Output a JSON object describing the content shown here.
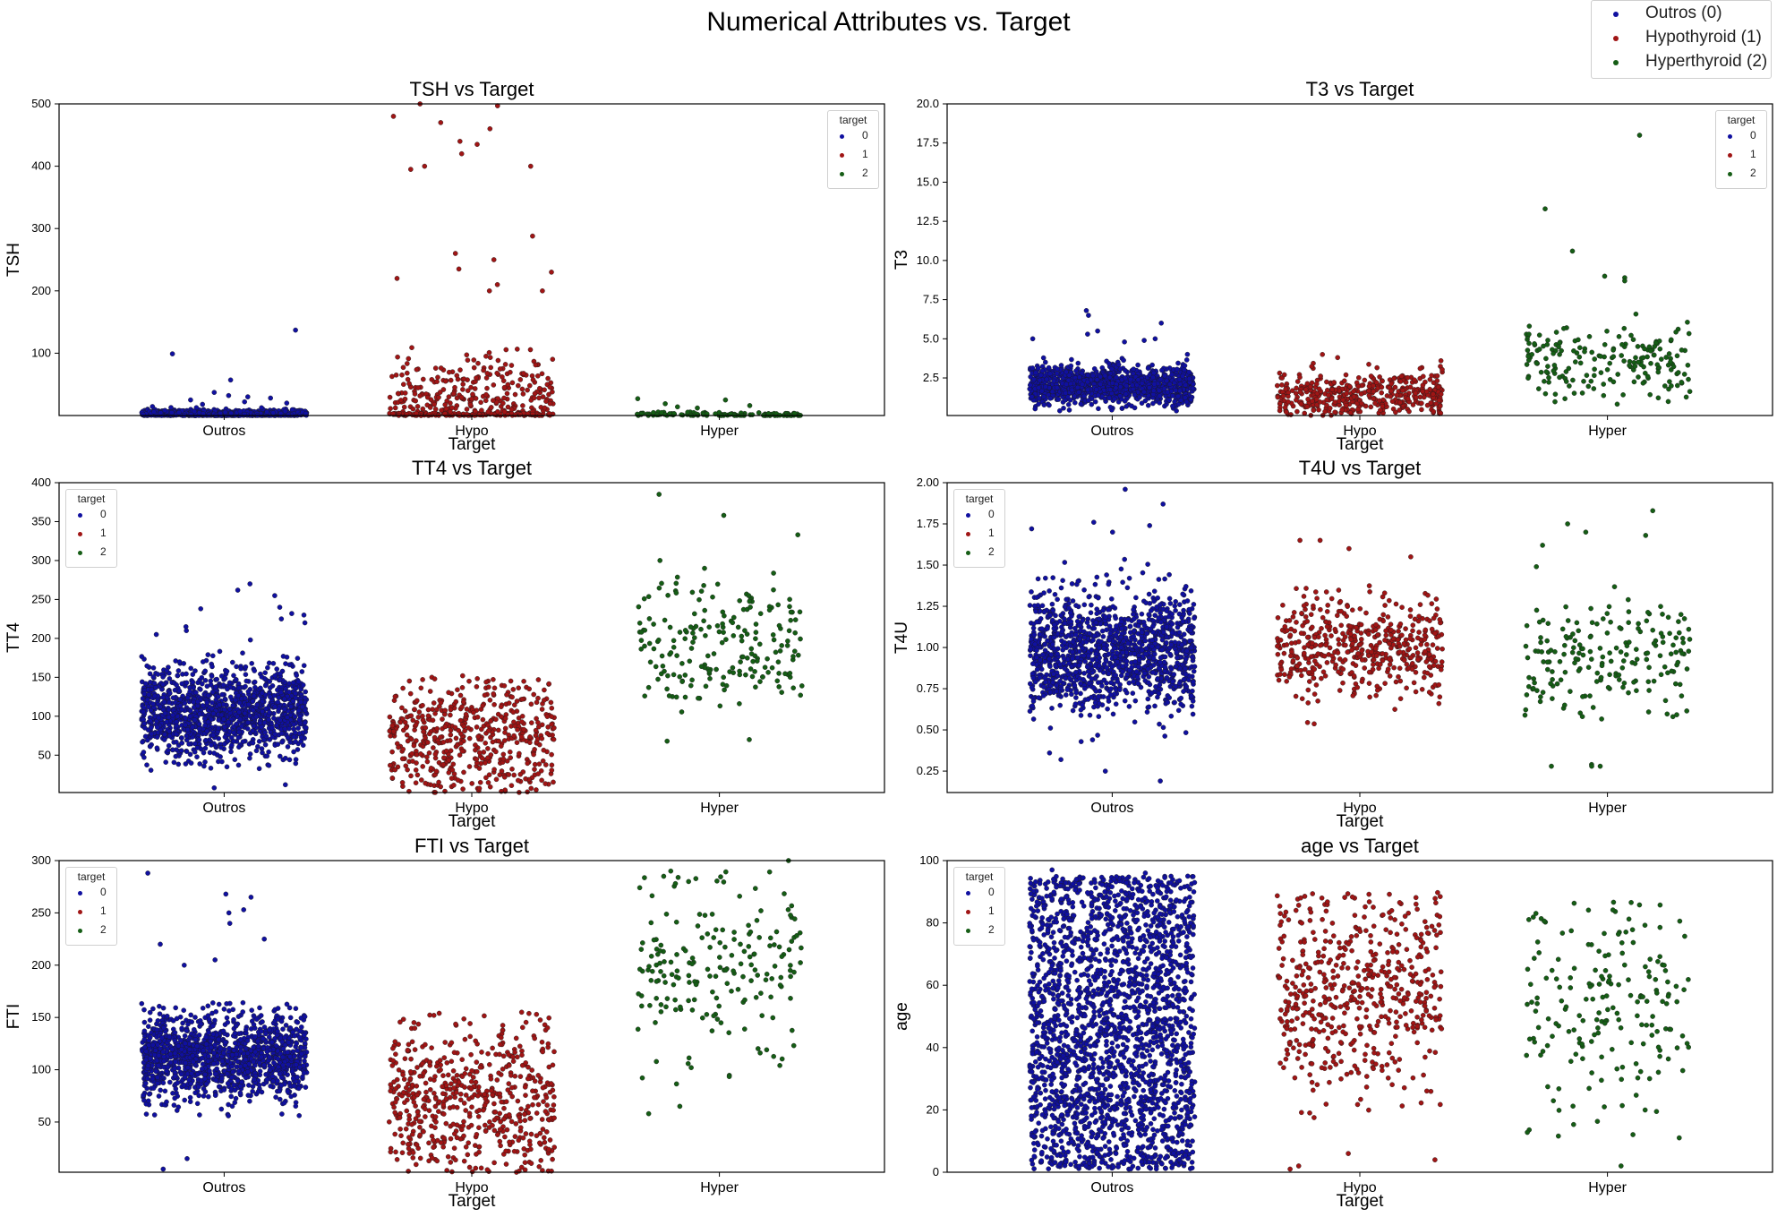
{
  "figure": {
    "suptitle": "Numerical Attributes vs. Target",
    "legend": [
      {
        "label": "Outros (0)",
        "color": "#1010a0"
      },
      {
        "label": "Hypothyroid (1)",
        "color": "#a01515"
      },
      {
        "label": "Hyperthyroid (2)",
        "color": "#155d15"
      }
    ]
  },
  "colors": {
    "c0": "#1010a0",
    "c1": "#a01515",
    "c2": "#155d15"
  },
  "chart_data": [
    {
      "type": "scatter",
      "title": "TSH vs Target",
      "xlabel": "Target",
      "ylabel": "TSH",
      "categories": [
        "Outros",
        "Hypo",
        "Hyper"
      ],
      "ylim": [
        0,
        500
      ],
      "yticks": [
        100,
        200,
        300,
        400,
        500
      ],
      "yticklabels": [
        "100",
        "200",
        "300",
        "400",
        "500"
      ],
      "legend_title": "target",
      "legend_labels": [
        "0",
        "1",
        "2"
      ],
      "legend_position": "top-right",
      "series": [
        {
          "name": "0",
          "n": 700,
          "center": 3,
          "spread": 3,
          "min": 0,
          "max": 20,
          "outliers": [
            99,
            137,
            57,
            37,
            32,
            30,
            28,
            25,
            22,
            20,
            18
          ]
        },
        {
          "name": "1",
          "n": 420,
          "center": 12,
          "spread": 40,
          "min": 0,
          "max": 260,
          "outliers": [
            500,
            497,
            480,
            470,
            460,
            440,
            435,
            420,
            400,
            400,
            395,
            288,
            260,
            250,
            235,
            230,
            220,
            210,
            200,
            200
          ]
        },
        {
          "name": "2",
          "n": 110,
          "center": 1.5,
          "spread": 2,
          "min": 0,
          "max": 28,
          "outliers": [
            27,
            25,
            19,
            16,
            14,
            12
          ]
        }
      ]
    },
    {
      "type": "scatter",
      "title": "T3 vs Target",
      "xlabel": "Target",
      "ylabel": "T3",
      "categories": [
        "Outros",
        "Hypo",
        "Hyper"
      ],
      "ylim": [
        0.1,
        20
      ],
      "yticks": [
        2.5,
        5,
        7.5,
        10,
        12.5,
        15,
        17.5,
        20
      ],
      "yticklabels": [
        "2.5",
        "5.0",
        "7.5",
        "10.0",
        "12.5",
        "15.0",
        "17.5",
        "20.0"
      ],
      "legend_title": "target",
      "legend_labels": [
        "0",
        "1",
        "2"
      ],
      "legend_position": "top-right",
      "series": [
        {
          "name": "0",
          "n": 1100,
          "center": 2.0,
          "spread": 0.6,
          "min": 0.1,
          "max": 4.6,
          "outliers": [
            6.8,
            6.5,
            6.0,
            5.5,
            5.3,
            5.0,
            5.0,
            4.9,
            4.8
          ]
        },
        {
          "name": "1",
          "n": 420,
          "center": 1.4,
          "spread": 0.7,
          "min": 0.1,
          "max": 3.5,
          "outliers": [
            4.0,
            3.8,
            3.6
          ]
        },
        {
          "name": "2",
          "n": 190,
          "center": 3.6,
          "spread": 1.2,
          "min": 0.8,
          "max": 8.5,
          "outliers": [
            18.0,
            13.3,
            10.6,
            9.0,
            8.9,
            8.7
          ]
        }
      ]
    },
    {
      "type": "scatter",
      "title": "TT4 vs Target",
      "xlabel": "Target",
      "ylabel": "TT4",
      "categories": [
        "Outros",
        "Hypo",
        "Hyper"
      ],
      "ylim": [
        2,
        400
      ],
      "yticks": [
        50,
        100,
        150,
        200,
        250,
        300,
        350,
        400
      ],
      "yticklabels": [
        "50",
        "100",
        "150",
        "200",
        "250",
        "300",
        "350",
        "400"
      ],
      "legend_title": "target",
      "legend_labels": [
        "0",
        "1",
        "2"
      ],
      "legend_position": "top-left",
      "series": [
        {
          "name": "0",
          "n": 1300,
          "center": 105,
          "spread": 28,
          "min": 30,
          "max": 185,
          "outliers": [
            270,
            262,
            255,
            240,
            238,
            232,
            230,
            225,
            220,
            215,
            210,
            205,
            198,
            12,
            8
          ]
        },
        {
          "name": "1",
          "n": 520,
          "center": 70,
          "spread": 38,
          "min": 2,
          "max": 150,
          "outliers": [
            152,
            150,
            148
          ]
        },
        {
          "name": "2",
          "n": 200,
          "center": 190,
          "spread": 42,
          "min": 95,
          "max": 295,
          "outliers": [
            385,
            358,
            333,
            300,
            290,
            70,
            68
          ]
        }
      ]
    },
    {
      "type": "scatter",
      "title": "T4U vs Target",
      "xlabel": "Target",
      "ylabel": "T4U",
      "categories": [
        "Outros",
        "Hypo",
        "Hyper"
      ],
      "ylim": [
        0.12,
        2.0
      ],
      "yticks": [
        0.25,
        0.5,
        0.75,
        1.0,
        1.25,
        1.5,
        1.75,
        2.0
      ],
      "yticklabels": [
        "0.25",
        "0.50",
        "0.75",
        "1.00",
        "1.25",
        "1.50",
        "1.75",
        "2.00"
      ],
      "legend_title": "target",
      "legend_labels": [
        "0",
        "1",
        "2"
      ],
      "legend_position": "top-left",
      "series": [
        {
          "name": "0",
          "n": 1300,
          "center": 0.97,
          "spread": 0.18,
          "min": 0.42,
          "max": 1.6,
          "outliers": [
            1.96,
            1.87,
            1.76,
            1.74,
            1.72,
            1.7,
            0.36,
            0.32,
            0.25,
            0.19
          ]
        },
        {
          "name": "1",
          "n": 480,
          "center": 1.0,
          "spread": 0.15,
          "min": 0.5,
          "max": 1.45,
          "outliers": [
            1.65,
            1.65,
            1.6,
            1.55
          ]
        },
        {
          "name": "2",
          "n": 190,
          "center": 0.95,
          "spread": 0.17,
          "min": 0.55,
          "max": 1.5,
          "outliers": [
            1.83,
            1.75,
            1.7,
            1.68,
            1.62,
            0.29,
            0.28,
            0.28,
            0.28
          ]
        }
      ]
    },
    {
      "type": "scatter",
      "title": "FTI vs Target",
      "xlabel": "Target",
      "ylabel": "FTI",
      "categories": [
        "Outros",
        "Hypo",
        "Hyper"
      ],
      "ylim": [
        2,
        300
      ],
      "yticks": [
        50,
        100,
        150,
        200,
        250,
        300
      ],
      "yticklabels": [
        "50",
        "100",
        "150",
        "200",
        "250",
        "300"
      ],
      "legend_title": "target",
      "legend_labels": [
        "0",
        "1",
        "2"
      ],
      "legend_position": "top-left",
      "series": [
        {
          "name": "0",
          "n": 1300,
          "center": 112,
          "spread": 20,
          "min": 35,
          "max": 165,
          "outliers": [
            288,
            268,
            265,
            253,
            250,
            240,
            225,
            220,
            205,
            200,
            15,
            5
          ]
        },
        {
          "name": "1",
          "n": 560,
          "center": 72,
          "spread": 38,
          "min": 2,
          "max": 155,
          "outliers": [
            155,
            153
          ]
        },
        {
          "name": "2",
          "n": 190,
          "center": 195,
          "spread": 42,
          "min": 60,
          "max": 290,
          "outliers": [
            300,
            290,
            285,
            280,
            65,
            58
          ]
        }
      ]
    },
    {
      "type": "scatter",
      "title": "age vs Target",
      "xlabel": "Target",
      "ylabel": "age",
      "categories": [
        "Outros",
        "Hypo",
        "Hyper"
      ],
      "ylim": [
        0,
        100
      ],
      "yticks": [
        0,
        20,
        40,
        60,
        80,
        100
      ],
      "yticklabels": [
        "0",
        "20",
        "40",
        "60",
        "80",
        "100"
      ],
      "legend_title": "target",
      "legend_labels": [
        "0",
        "1",
        "2"
      ],
      "legend_position": "top-left",
      "series": [
        {
          "name": "0",
          "n": 2200,
          "center": 55,
          "spread": 20,
          "min": 1,
          "max": 95,
          "uniform": true,
          "outliers": [
            97,
            96,
            95,
            94
          ]
        },
        {
          "name": "1",
          "n": 520,
          "center": 58,
          "spread": 17,
          "min": 15,
          "max": 90,
          "outliers": [
            6,
            4,
            2,
            1
          ]
        },
        {
          "name": "2",
          "n": 190,
          "center": 50,
          "spread": 18,
          "min": 10,
          "max": 87,
          "outliers": [
            2
          ]
        }
      ]
    }
  ]
}
